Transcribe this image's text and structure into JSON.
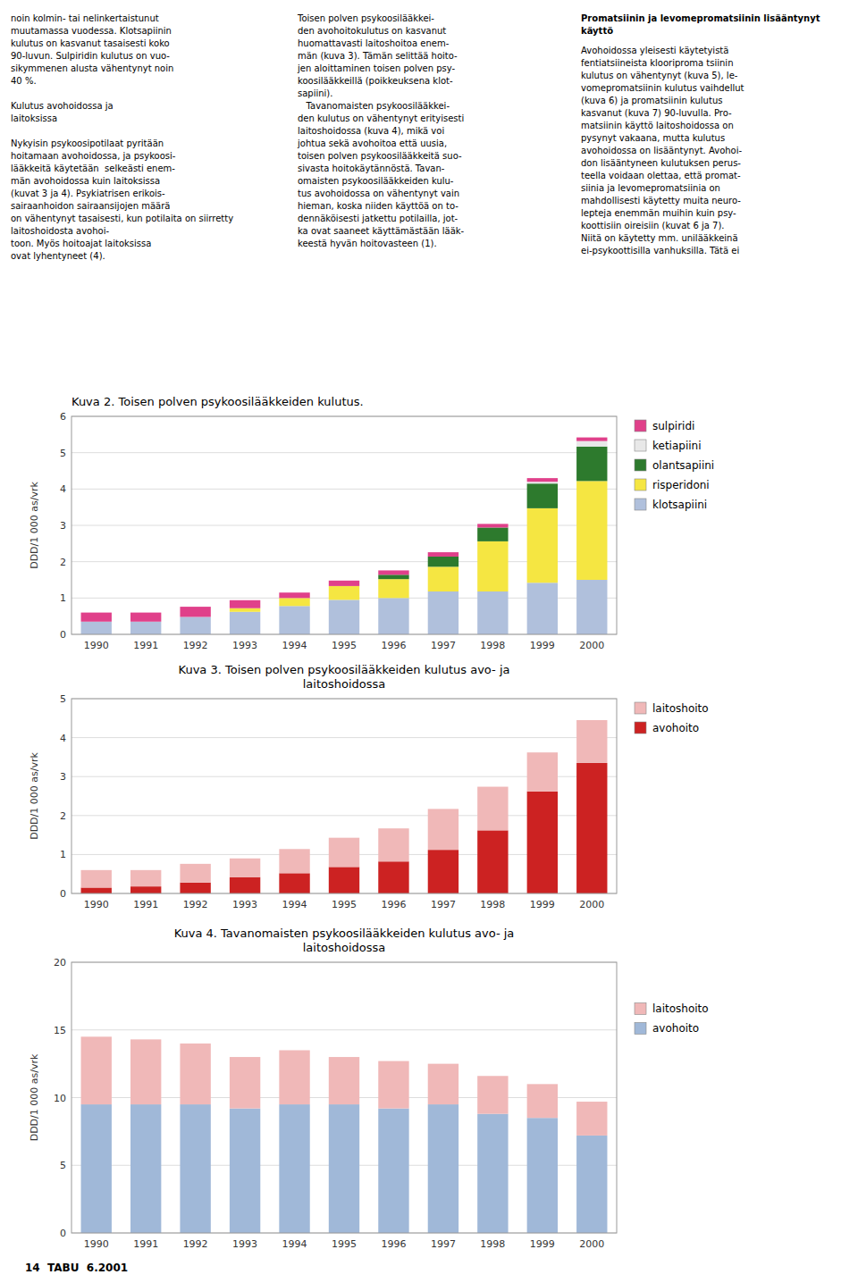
{
  "annotations": [
    "noin kolmin- tai nelinkertaistunut\nmuutamassa vuodessa. Klotsapiinin\nkulutus on kasvanut tasaisesti koko\n90-luvun. Sulpiridin kulutus on vuo-\nsikymmenen alusta vähentynyt noin\n40 %.\n\nKulutus avohoidossa ja\nlaitoksissa\n\nNykyisin psykoosipotilaat pyritään\nhoitamaan avohoidossa, ja psykoosi-\nlääkkeitä käytetään  selkeästi enem-\nmän avohoidossa kuin laitoksissa\n(kuvat 3 ja 4). Psykiatrisen erikois-\nsairaanhoidon sairaansijojen määrä\non vähentynyt tasaisesti, kun potilaita on siirretty laitoshoidosta avohoi-\ntoon. Myös hoitoajat laitoksissa\novat lyhentyneet (4).",
    "Toisen polven psykoosilääkkei-\nden avohoitokulutus on kasvanut\nhuomattavasti laitoshoitoa enem-\nmän (kuva 3). Tämän selittää hoito-\njen aloittaminen toisen polven psy-\nkoosilääkkeillä (poikkeuksena klot-\nsapiini).\n   Tavanomaisten psykoosilääkkei-\nden kulutus on vähentynyt erityisesti\nlaitoshoidossa (kuva 4), mikä voi\njohtua sekä avohoitoa että uusia,\ntoisen polven psykoosilääkkeitä suo-\nsivasta hoitokäytännöstä. Tavan-\nomaisten psykoosilääkkeiden kulu-\ntus avohoidossa on vähentynyt vain\nhieman, koska niiden käyttöä on to-\ndennäköisesti jatkettu potilailla, jot-\nka ovat saaneet käyttämästään lääk-\nkeestä hyvän hoitovasteen (1).",
    "Promatsiinin ja levomepromatsiinin lisääntynyt käyttö",
    "Avohoidossa yleisesti käytetyistä\nfentiatsiineista klooriproma tsiinin\nkulutus on vähentynyt (kuva 5), le-\nvomepromatsiinin kulutus vaihdellut\n(kuva 6) ja promatsiinin kulutus\nkasvanut (kuva 7) 90-luvulla. Pro-\nmatsiinin käyttö laitoshoidossa on\npysynyt vakaana, mutta kulutus\navohoidossa on lisääntynyt. Avohoi-\ndon lisääntyneen kulutuksen perus-\nteella voidaan olettaa, että promat-\nsiinia ja levomepromatsiinia on\nmahdollisesti käytetty muita neuro-\nlepteja enemmän muihin kuin psy-\nkoottisiin oireisiin (kuvat 6 ja 7).\nNiitä on käytetty mm. unilääkkeinä\nei-psykoottisilla vanhuksilla. Tätä ei",
    "14  TABU  6.2001"
  ],
  "chart_data": [
    {
      "type": "bar",
      "stacked": true,
      "grid": true,
      "legend": "right",
      "title": "Kuva 2. Toisen polven psykoosilääkkeiden kulutus.",
      "ylabel": "DDD/1 000 as/vrk",
      "categories": [
        "1990",
        "1991",
        "1992",
        "1993",
        "1994",
        "1995",
        "1996",
        "1997",
        "1998",
        "1999",
        "2000"
      ],
      "ylim": [
        0,
        6
      ],
      "yticks": [
        0,
        1,
        2,
        3,
        4,
        5,
        6
      ],
      "series": [
        {
          "name": "klotsapiini",
          "color": "#b0c0dc",
          "values": [
            0.35,
            0.35,
            0.48,
            0.62,
            0.78,
            0.95,
            1.0,
            1.18,
            1.18,
            1.42,
            1.5
          ]
        },
        {
          "name": "risperidoni",
          "color": "#f5e642",
          "values": [
            0.0,
            0.0,
            0.0,
            0.1,
            0.22,
            0.38,
            0.52,
            0.68,
            1.38,
            2.05,
            2.72
          ]
        },
        {
          "name": "olantsapiini",
          "color": "#2d7a2d",
          "values": [
            0.0,
            0.0,
            0.0,
            0.0,
            0.0,
            0.0,
            0.12,
            0.28,
            0.38,
            0.68,
            0.95
          ]
        },
        {
          "name": "ketiapiini",
          "color": "#e8e8e8",
          "values": [
            0.0,
            0.0,
            0.0,
            0.0,
            0.0,
            0.0,
            0.0,
            0.0,
            0.0,
            0.05,
            0.15
          ]
        },
        {
          "name": "sulpiridi",
          "color": "#e0408a",
          "values": [
            0.25,
            0.25,
            0.28,
            0.22,
            0.15,
            0.15,
            0.12,
            0.12,
            0.1,
            0.1,
            0.1
          ]
        }
      ]
    },
    {
      "type": "bar",
      "stacked": true,
      "grid": true,
      "legend": "right",
      "title": "Kuva 3. Toisen polven psykoosilääkkeiden kulutus avo- ja\nlaitoshoidossa",
      "ylabel": "DDD/1 000 as/vrk",
      "categories": [
        "1990",
        "1991",
        "1992",
        "1993",
        "1994",
        "1995",
        "1996",
        "1997",
        "1998",
        "1999",
        "2000"
      ],
      "ylim": [
        0,
        5
      ],
      "yticks": [
        0,
        1,
        2,
        3,
        4,
        5
      ],
      "series": [
        {
          "name": "avohoito",
          "color": "#cc2222",
          "values": [
            0.15,
            0.18,
            0.28,
            0.42,
            0.52,
            0.68,
            0.82,
            1.12,
            1.62,
            2.62,
            3.35
          ]
        },
        {
          "name": "laitoshoito",
          "color": "#f0b8b8",
          "values": [
            0.45,
            0.42,
            0.48,
            0.48,
            0.62,
            0.75,
            0.85,
            1.05,
            1.12,
            1.0,
            1.1
          ]
        }
      ]
    },
    {
      "type": "bar",
      "stacked": true,
      "grid": true,
      "legend": "right",
      "title": "Kuva 4. Tavanomaisten psykoosilääkkeiden kulutus avo- ja\nlaitoshoidossa",
      "ylabel": "DDD/1 000 as/vrk",
      "categories": [
        "1990",
        "1991",
        "1992",
        "1993",
        "1994",
        "1995",
        "1996",
        "1997",
        "1998",
        "1999",
        "2000"
      ],
      "ylim": [
        0,
        20
      ],
      "yticks": [
        0,
        5,
        10,
        15,
        20
      ],
      "series": [
        {
          "name": "avohoito",
          "color": "#a0b8d8",
          "values": [
            9.5,
            9.5,
            9.5,
            9.2,
            9.5,
            9.5,
            9.2,
            9.5,
            8.8,
            8.5,
            7.2
          ]
        },
        {
          "name": "laitoshoito",
          "color": "#f0b8b8",
          "values": [
            5.0,
            4.8,
            4.5,
            3.8,
            4.0,
            3.5,
            3.5,
            3.0,
            2.8,
            2.5,
            2.5
          ]
        }
      ]
    }
  ]
}
